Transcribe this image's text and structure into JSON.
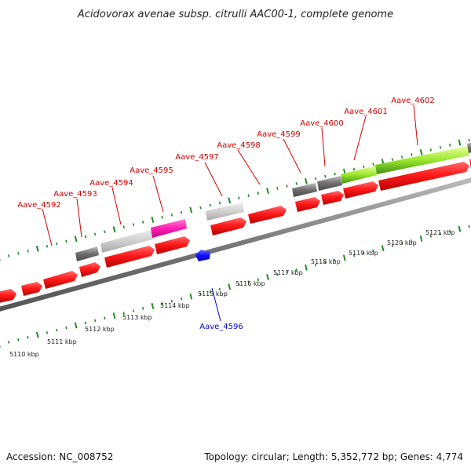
{
  "title": "Acidovorax avenae subsp. citrulli AAC00-1, complete genome",
  "footer": {
    "accession": "Accession: NC_008752",
    "topology": "Topology: circular; Length: 5,352,772 bp; Genes: 4,774"
  },
  "colors": {
    "forward_gene": "#ff0000",
    "reverse_gene": "#0000ff",
    "backbone": "#7a7a7a",
    "tick": "#228b22",
    "label_forward": "#cc0000",
    "label_reverse": "#0000cc"
  },
  "kbp_labels": [
    "5110 kbp",
    "5111 kbp",
    "5112 kbp",
    "5113 kbp",
    "5114 kbp",
    "5115 kbp",
    "5116 kbp",
    "5117 kbp",
    "5118 kbp",
    "5119 kbp",
    "5120 kbp",
    "5121 kbp"
  ],
  "gene_labels": [
    {
      "text": "Aave_4592",
      "strand": "forward"
    },
    {
      "text": "Aave_4593",
      "strand": "forward"
    },
    {
      "text": "Aave_4594",
      "strand": "forward"
    },
    {
      "text": "Aave_4595",
      "strand": "forward"
    },
    {
      "text": "Aave_4597",
      "strand": "forward"
    },
    {
      "text": "Aave_4598",
      "strand": "forward"
    },
    {
      "text": "Aave_4599",
      "strand": "forward"
    },
    {
      "text": "Aave_4600",
      "strand": "forward"
    },
    {
      "text": "Aave_4601",
      "strand": "forward"
    },
    {
      "text": "Aave_4602",
      "strand": "forward"
    },
    {
      "text": "Aave_4596",
      "strand": "reverse"
    }
  ]
}
